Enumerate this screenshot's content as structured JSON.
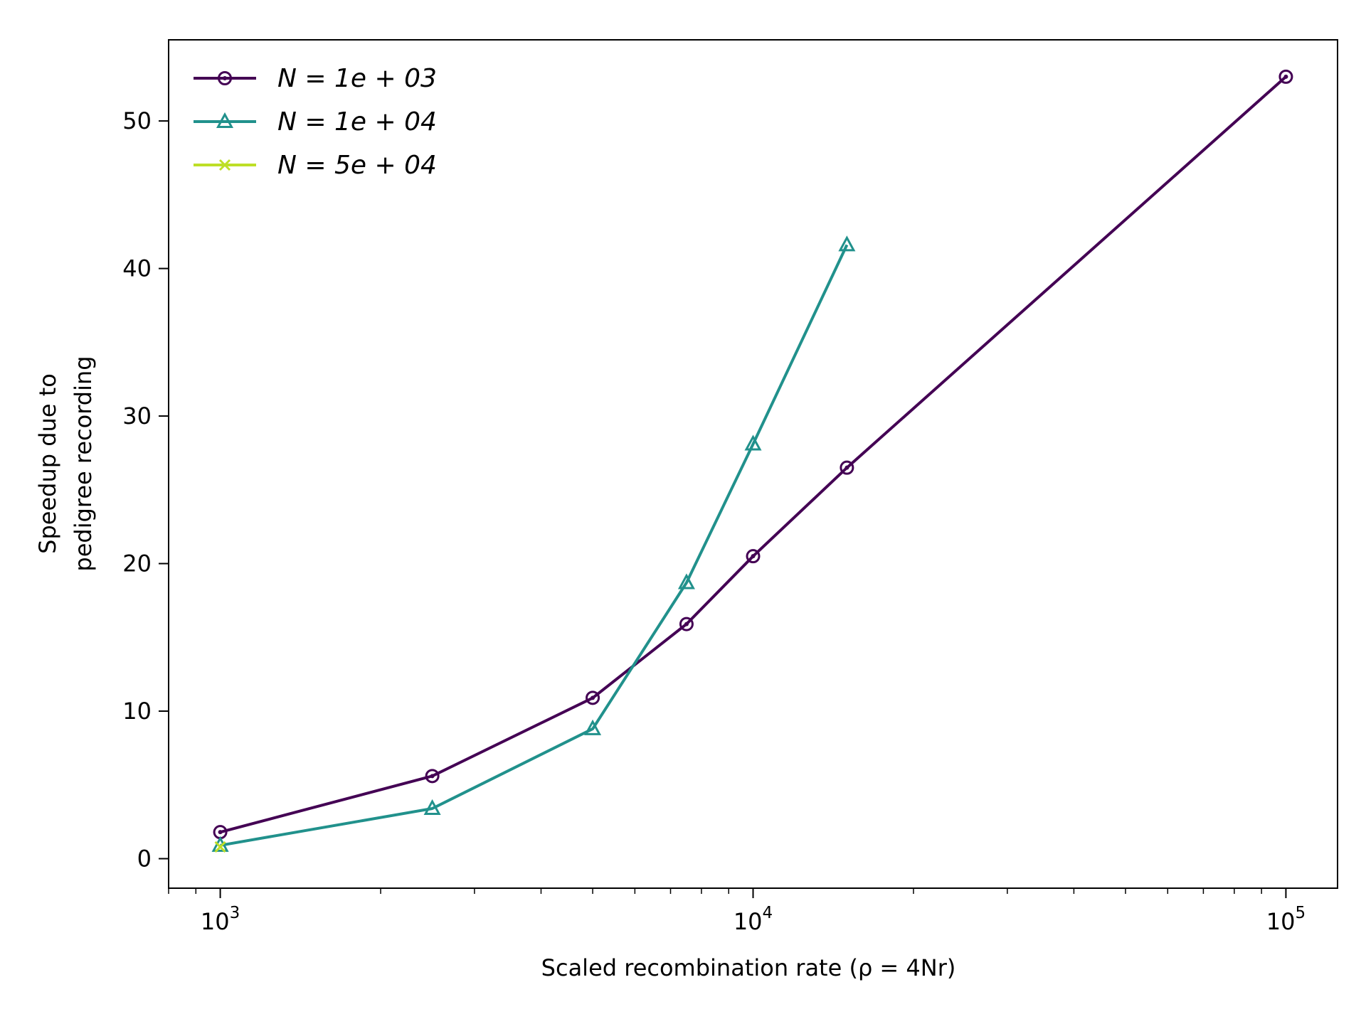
{
  "chart_data": {
    "type": "line",
    "title": "",
    "xlabel": "Scaled recombination rate (ρ = 4Nr)",
    "ylabel_line1": "Speedup due to",
    "ylabel_line2": "pedigree recording",
    "x_scale": "log",
    "xlim": [
      800,
      125000
    ],
    "ylim": [
      -2,
      55.5
    ],
    "x_ticks": [
      {
        "value": 1000,
        "base": "10",
        "exp": "3"
      },
      {
        "value": 10000,
        "base": "10",
        "exp": "4"
      },
      {
        "value": 100000,
        "base": "10",
        "exp": "5"
      }
    ],
    "y_ticks": [
      0,
      10,
      20,
      30,
      40,
      50
    ],
    "y_tick_labels": [
      "0",
      "10",
      "20",
      "30",
      "40",
      "50"
    ],
    "grid": false,
    "legend_position": "top-left",
    "series": [
      {
        "name": "N = 1e + 03",
        "color": "#440154",
        "marker": "circle",
        "x": [
          1000,
          2500,
          5000,
          7500,
          10000,
          15000,
          100000
        ],
        "y": [
          1.8,
          5.6,
          10.9,
          15.9,
          20.5,
          26.5,
          53.0
        ]
      },
      {
        "name": "N = 1e + 04",
        "color": "#21918c",
        "marker": "triangle",
        "x": [
          1000,
          2500,
          5000,
          7500,
          10000,
          15000
        ],
        "y": [
          0.9,
          3.4,
          8.8,
          18.7,
          28.1,
          41.6
        ]
      },
      {
        "name": "N = 5e + 04",
        "color": "#bddf26",
        "marker": "x",
        "x": [
          1000
        ],
        "y": [
          0.8
        ]
      }
    ]
  }
}
